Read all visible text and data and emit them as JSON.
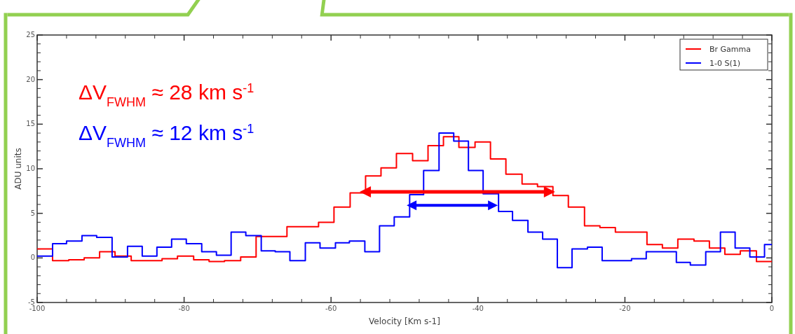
{
  "chart_data": {
    "type": "step",
    "xlabel": "Velocity [Km s-1]",
    "ylabel": "ADU units",
    "xlim": [
      -100,
      0
    ],
    "xticks": [
      -100,
      -80,
      -60,
      -40,
      -20,
      0
    ],
    "ylim": [
      -5,
      25
    ],
    "yticks": [
      -5,
      0,
      5,
      10,
      15,
      20,
      25
    ],
    "grid": false,
    "legend": "top right",
    "marker": "none",
    "line_style": "solid",
    "annotations": [
      "ΔV$_{FWHM}$ ≈ 28 km s$^{-1}$",
      "ΔV$_{FWHM}$ ≈ 12 km s$^{-1}$"
    ],
    "series": [
      {
        "name": "Br Gamma",
        "color": "#ff0000",
        "x": [
          -100,
          -97.9,
          -95.7,
          -93.6,
          -91.5,
          -89.4,
          -87.2,
          -85.1,
          -83,
          -80.9,
          -78.7,
          -76.6,
          -74.5,
          -72.3,
          -70.2,
          -68.1,
          -66,
          -63.8,
          -61.7,
          -59.6,
          -57.4,
          -55.3,
          -53.2,
          -51.1,
          -48.9,
          -46.8,
          -44.7,
          -42.6,
          -40.4,
          -38.3,
          -36.2,
          -34,
          -31.9,
          -29.8,
          -27.7,
          -25.5,
          -23.4,
          -21.3,
          -19.1,
          -17,
          -14.9,
          -12.8,
          -10.6,
          -8.5,
          -6.4,
          -4.3,
          -2.1,
          0
        ],
        "values": [
          1.0,
          -0.3,
          -0.2,
          0.0,
          0.7,
          0.2,
          -0.3,
          -0.3,
          -0.1,
          0.2,
          -0.2,
          -0.4,
          -0.3,
          0.1,
          2.4,
          2.4,
          3.5,
          3.5,
          4.0,
          5.7,
          7.3,
          9.2,
          10.1,
          11.7,
          10.9,
          12.6,
          13.6,
          12.4,
          13.0,
          11.1,
          9.4,
          8.3,
          8.0,
          7.0,
          5.7,
          3.6,
          3.4,
          2.9,
          2.9,
          1.5,
          1.1,
          2.1,
          1.9,
          1.1,
          0.4,
          0.8,
          -0.4,
          -0.4
        ]
      },
      {
        "name": "1-0 S(1)",
        "color": "#0000ff",
        "x": [
          -100,
          -97.9,
          -96,
          -93.9,
          -91.9,
          -89.8,
          -87.7,
          -85.7,
          -83.7,
          -81.7,
          -79.7,
          -77.6,
          -75.6,
          -73.6,
          -71.6,
          -69.5,
          -67.6,
          -65.6,
          -63.5,
          -61.5,
          -59.4,
          -57.5,
          -55.4,
          -53.4,
          -51.4,
          -49.3,
          -47.4,
          -45.3,
          -43.3,
          -41.3,
          -39.3,
          -37.2,
          -35.3,
          -33.2,
          -31.2,
          -29.2,
          -27.2,
          -25.1,
          -23.1,
          -21.1,
          -19.1,
          -17.1,
          -15,
          -13,
          -11.1,
          -9,
          -7,
          -5,
          -3,
          -1,
          0
        ],
        "values": [
          0.2,
          1.6,
          1.9,
          2.5,
          2.3,
          0.1,
          1.3,
          0.2,
          1.2,
          2.1,
          1.6,
          0.7,
          0.3,
          2.9,
          2.5,
          0.8,
          0.7,
          -0.3,
          1.7,
          1.1,
          1.7,
          1.9,
          0.7,
          3.6,
          4.6,
          7.1,
          9.8,
          14.0,
          13.1,
          9.8,
          7.2,
          5.2,
          4.2,
          2.9,
          2.1,
          -1.1,
          1.0,
          1.2,
          -0.3,
          -0.3,
          -0.1,
          0.7,
          0.7,
          -0.5,
          -0.8,
          0.7,
          2.9,
          1.1,
          0.1,
          1.5,
          1.5
        ]
      }
    ]
  }
}
